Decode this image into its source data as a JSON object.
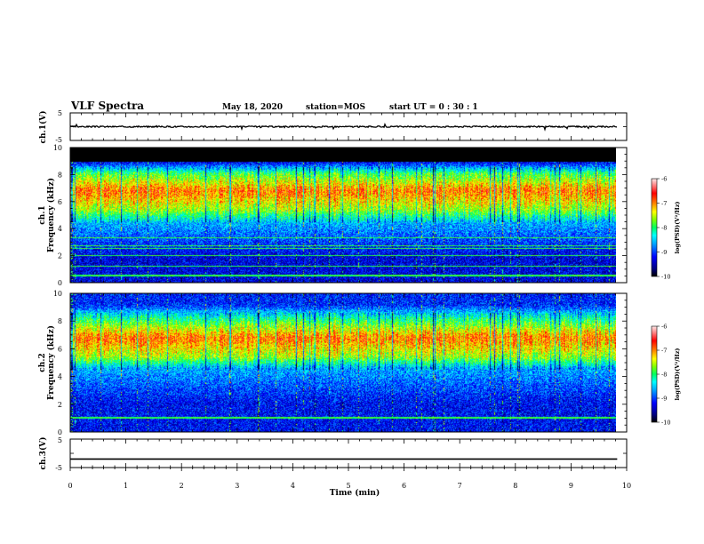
{
  "header": {
    "title": "VLF Spectra",
    "date": "May 18, 2020",
    "station": "station=MOS",
    "start": "start UT = 0 : 30 : 1"
  },
  "colors": {
    "frame": "#000000",
    "colormap": [
      "#000000",
      "#000080",
      "#0000ff",
      "#00a0ff",
      "#00ffff",
      "#00ff60",
      "#80ff00",
      "#ffff00",
      "#ff8000",
      "#ff0000",
      "#ff8080",
      "#ffe0e0"
    ]
  },
  "chart_data": [
    {
      "type": "line",
      "name": "ch1-waveform",
      "ylabel": "ch.1(V)",
      "yticks": [
        "5",
        "-5"
      ],
      "ylim": [
        -5,
        5
      ],
      "xlim": [
        0,
        9.83
      ],
      "level": 0
    },
    {
      "type": "heatmap",
      "name": "ch1-spectrogram",
      "ylabel_line1": "ch.1",
      "ylabel_line2": "Frequency  (kHz)",
      "ylim": [
        0,
        10
      ],
      "yticks": [
        "0",
        "2",
        "4",
        "6",
        "8",
        "10"
      ],
      "xlim": [
        0,
        9.83
      ],
      "colorbar": {
        "label": "log(PSD)(V²/Hz)",
        "ticks": [
          "-6",
          "-7",
          "-8",
          "-9",
          "-10"
        ],
        "range": [
          -10,
          -6
        ]
      },
      "bands": [
        {
          "from": 0.0,
          "to": 3.8,
          "level": -9.3
        },
        {
          "from": 3.8,
          "to": 5.0,
          "level": -8.6
        },
        {
          "from": 5.0,
          "to": 5.8,
          "level": -7.6
        },
        {
          "from": 5.8,
          "to": 7.8,
          "level": -6.9
        },
        {
          "from": 7.8,
          "to": 8.4,
          "level": -7.9
        },
        {
          "from": 8.4,
          "to": 9.0,
          "level": -8.9
        },
        {
          "from": 9.0,
          "to": 10.0,
          "level": -10.0
        }
      ],
      "tones_khz": [
        0.5,
        1.2,
        2.0,
        2.5,
        2.7,
        3.3
      ]
    },
    {
      "type": "heatmap",
      "name": "ch2-spectrogram",
      "ylabel_line1": "ch.2",
      "ylabel_line2": "Frequency  (kHz)",
      "ylim": [
        0,
        10
      ],
      "yticks": [
        "0",
        "2",
        "4",
        "6",
        "8",
        "10"
      ],
      "xlim": [
        0,
        9.83
      ],
      "colorbar": {
        "label": "log(PSD)(V²/Hz)",
        "ticks": [
          "-6",
          "-7",
          "-8",
          "-9",
          "-10"
        ],
        "range": [
          -10,
          -6
        ]
      },
      "bands": [
        {
          "from": 0.0,
          "to": 4.2,
          "level": -9.2
        },
        {
          "from": 4.2,
          "to": 5.0,
          "level": -8.6
        },
        {
          "from": 5.0,
          "to": 5.8,
          "level": -7.6
        },
        {
          "from": 5.8,
          "to": 7.8,
          "level": -6.9
        },
        {
          "from": 7.8,
          "to": 8.4,
          "level": -8.0
        },
        {
          "from": 8.4,
          "to": 10.0,
          "level": -9.1
        }
      ],
      "tones_khz": [
        1.0
      ]
    },
    {
      "type": "line",
      "name": "ch3-waveform",
      "ylabel": "ch.3(V)",
      "yticks": [
        "5",
        "-5"
      ],
      "ylim": [
        -5,
        5
      ],
      "xlim": [
        0,
        9.83
      ],
      "level": -2
    }
  ],
  "x_axis": {
    "label": "Time  (min)",
    "ticks": [
      "0",
      "1",
      "2",
      "3",
      "4",
      "5",
      "6",
      "7",
      "8",
      "9",
      "10"
    ],
    "range": [
      0,
      10
    ]
  }
}
